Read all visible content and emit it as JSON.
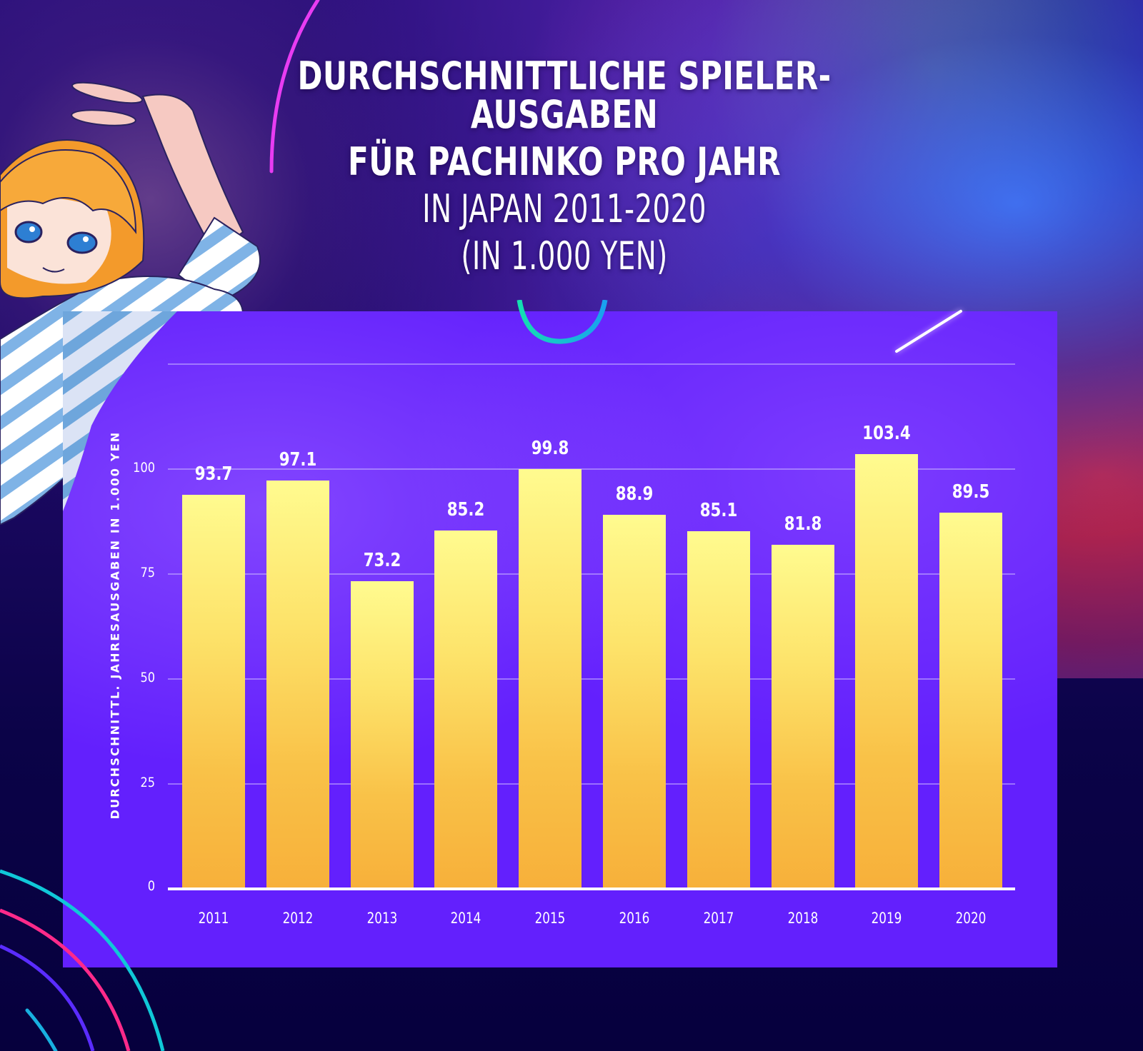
{
  "title": {
    "line1": "DURCHSCHNITTLICHE SPIELER-AUSGABEN",
    "line2": "FÜR PACHINKO PRO JAHR",
    "line3": "IN JAPAN 2011-2020",
    "line4": "(IN 1.000 YEN)"
  },
  "colors": {
    "panel": "#6320fd",
    "bar_top": "#fffb8f",
    "bar_bottom": "#f7b03a",
    "background_dark": "#06003d",
    "text": "#ffffff"
  },
  "chart_data": {
    "type": "bar",
    "title": "Durchschnittliche Spieler-Ausgaben für Pachinko pro Jahr in Japan 2011-2020 (in 1.000 Yen)",
    "xlabel": "",
    "ylabel": "DURCHSCHNITTL. JAHRESAUSGABEN IN 1.000 YEN",
    "categories": [
      "2011",
      "2012",
      "2013",
      "2014",
      "2015",
      "2016",
      "2017",
      "2018",
      "2019",
      "2020"
    ],
    "values": [
      93.7,
      97.1,
      73.2,
      85.2,
      99.8,
      88.9,
      85.1,
      81.8,
      103.4,
      89.5
    ],
    "value_labels": [
      "93.7",
      "97.1",
      "73.2",
      "85.2",
      "99.8",
      "88.9",
      "85.1",
      "81.8",
      "103.4",
      "89.5"
    ],
    "yticks": [
      "0",
      "25",
      "50",
      "75",
      "100"
    ],
    "ylim": [
      0,
      125
    ],
    "grid": true,
    "legend": null
  }
}
